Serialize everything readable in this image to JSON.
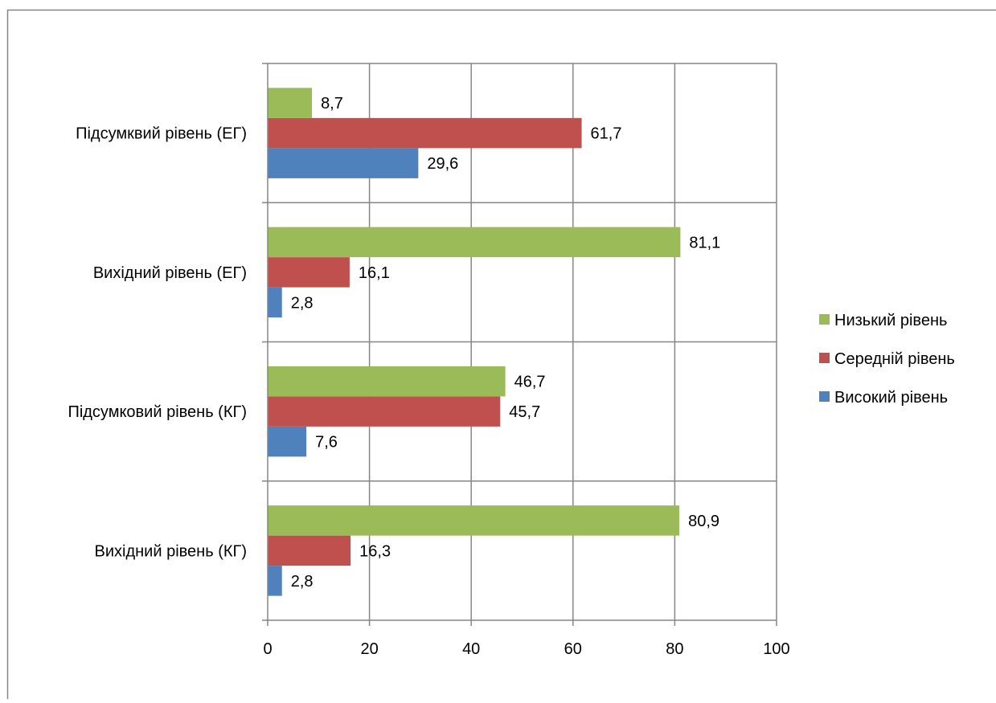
{
  "chart_data": {
    "type": "bar",
    "orientation": "horizontal",
    "categories": [
      "Вихідний рівень (КГ)",
      "Підсумковий рівень (КГ)",
      "Вихідний рівень (ЕГ)",
      "Підсумквий рівень (ЕГ)"
    ],
    "series": [
      {
        "name": "Високий рівень",
        "color": "#4F81BD",
        "values": [
          2.8,
          7.6,
          2.8,
          29.6
        ],
        "labels": [
          "2,8",
          "7,6",
          "2,8",
          "29,6"
        ]
      },
      {
        "name": "Середній рівень",
        "color": "#C0504D",
        "values": [
          16.3,
          45.7,
          16.1,
          61.7
        ],
        "labels": [
          "16,3",
          "45,7",
          "16,1",
          "61,7"
        ]
      },
      {
        "name": "Низький рівень",
        "color": "#9BBB59",
        "values": [
          80.9,
          46.7,
          81.1,
          8.7
        ],
        "labels": [
          "80,9",
          "46,7",
          "81,1",
          "8,7"
        ]
      }
    ],
    "xlim": [
      0,
      100
    ],
    "xticks": [
      0,
      20,
      40,
      60,
      80,
      100
    ],
    "xtick_labels": [
      "0",
      "20",
      "40",
      "60",
      "80",
      "100"
    ],
    "grid": true,
    "legend_position": "right",
    "legend_order": [
      "Низький рівень",
      "Середній рівень",
      "Високий рівень"
    ],
    "title": "",
    "xlabel": "",
    "ylabel": ""
  }
}
